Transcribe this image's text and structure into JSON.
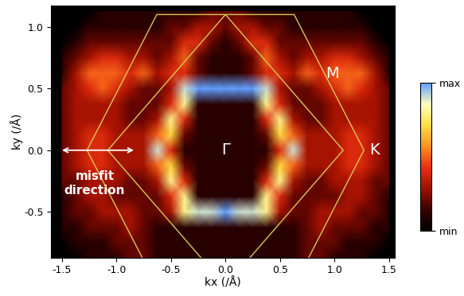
{
  "chart_data": {
    "type": "heatmap",
    "x_label": "kx (/Å)",
    "y_label": "ky (/Å)",
    "x": [
      -1.5,
      -1.375,
      -1.25,
      -1.125,
      -1.0,
      -0.875,
      -0.75,
      -0.625,
      -0.5,
      -0.375,
      -0.25,
      -0.125,
      0.0,
      0.125,
      0.25,
      0.375,
      0.5,
      0.625,
      0.75,
      0.875,
      1.0,
      1.125,
      1.25,
      1.375,
      1.5
    ],
    "y": [
      -0.875,
      -0.75,
      -0.625,
      -0.5,
      -0.375,
      -0.25,
      -0.125,
      0.0,
      0.125,
      0.25,
      0.375,
      0.5,
      0.625,
      0.75,
      0.875,
      1.0,
      1.125
    ],
    "cells": [
      [
        0,
        0,
        1,
        1,
        1,
        2,
        2,
        1,
        1,
        1,
        1,
        1,
        1,
        1,
        1,
        1,
        1,
        1,
        2,
        2,
        1,
        1,
        1,
        0,
        0
      ],
      [
        0,
        1,
        1,
        1,
        2,
        2,
        2,
        1,
        1,
        1,
        1,
        1,
        1,
        1,
        1,
        1,
        1,
        1,
        2,
        2,
        2,
        1,
        1,
        1,
        0
      ],
      [
        1,
        1,
        2,
        2,
        2,
        3,
        2,
        1,
        1,
        1,
        1,
        1,
        1,
        1,
        1,
        1,
        1,
        1,
        2,
        3,
        2,
        2,
        2,
        1,
        1
      ],
      [
        1,
        2,
        2,
        3,
        3,
        3,
        2,
        2,
        3,
        8,
        9,
        9,
        10,
        9,
        9,
        8,
        3,
        2,
        2,
        3,
        3,
        3,
        2,
        2,
        1
      ],
      [
        1,
        2,
        3,
        3,
        2,
        2,
        2,
        2,
        4,
        8,
        1,
        1,
        1,
        1,
        1,
        8,
        4,
        2,
        2,
        2,
        2,
        3,
        3,
        2,
        1
      ],
      [
        2,
        2,
        3,
        3,
        3,
        2,
        2,
        3,
        8,
        4,
        1,
        1,
        1,
        1,
        1,
        4,
        8,
        3,
        2,
        2,
        3,
        3,
        3,
        2,
        2
      ],
      [
        2,
        3,
        4,
        4,
        3,
        3,
        3,
        5,
        7,
        2,
        1,
        1,
        1,
        1,
        1,
        2,
        7,
        5,
        3,
        3,
        3,
        4,
        4,
        3,
        2
      ],
      [
        2,
        3,
        4,
        4,
        3,
        3,
        3,
        9,
        4,
        1,
        1,
        1,
        1,
        1,
        1,
        1,
        4,
        9,
        3,
        3,
        3,
        4,
        4,
        3,
        2
      ],
      [
        2,
        3,
        4,
        4,
        3,
        3,
        3,
        5,
        7,
        2,
        1,
        1,
        1,
        1,
        1,
        2,
        7,
        5,
        3,
        3,
        3,
        4,
        4,
        3,
        2
      ],
      [
        2,
        3,
        3,
        3,
        3,
        2,
        2,
        3,
        8,
        4,
        1,
        1,
        1,
        1,
        1,
        4,
        8,
        3,
        2,
        2,
        3,
        3,
        3,
        3,
        2
      ],
      [
        2,
        3,
        3,
        3,
        3,
        2,
        2,
        2,
        4,
        8,
        1,
        1,
        1,
        1,
        1,
        8,
        4,
        2,
        2,
        2,
        3,
        3,
        3,
        3,
        2
      ],
      [
        2,
        3,
        4,
        5,
        4,
        3,
        2,
        2,
        3,
        9,
        10,
        10,
        10,
        10,
        10,
        9,
        3,
        2,
        2,
        3,
        4,
        5,
        4,
        3,
        2
      ],
      [
        1,
        3,
        5,
        5,
        5,
        4,
        5,
        3,
        4,
        4,
        2,
        1,
        1,
        1,
        2,
        4,
        4,
        3,
        5,
        4,
        5,
        5,
        5,
        3,
        1
      ],
      [
        1,
        2,
        3,
        4,
        4,
        3,
        3,
        2,
        3,
        5,
        2,
        1,
        1,
        1,
        2,
        5,
        3,
        2,
        3,
        3,
        4,
        4,
        3,
        2,
        1
      ],
      [
        0,
        1,
        2,
        2,
        2,
        2,
        2,
        2,
        2,
        4,
        4,
        2,
        1,
        2,
        4,
        4,
        2,
        2,
        2,
        2,
        2,
        2,
        2,
        1,
        0
      ],
      [
        0,
        0,
        1,
        1,
        1,
        1,
        1,
        1,
        2,
        2,
        3,
        3,
        2,
        3,
        3,
        2,
        2,
        1,
        1,
        1,
        1,
        1,
        1,
        0,
        0
      ],
      [
        0,
        0,
        0,
        1,
        1,
        1,
        1,
        1,
        1,
        1,
        1,
        2,
        2,
        2,
        1,
        1,
        1,
        1,
        1,
        1,
        1,
        1,
        0,
        0,
        0
      ]
    ],
    "colorbar": {
      "range": [
        0,
        10
      ],
      "ticks": [
        {
          "value": 0,
          "label": "min"
        },
        {
          "value": 10,
          "label": "max"
        }
      ]
    },
    "xlim": [
      -1.6,
      1.55
    ],
    "ylim": [
      -0.87,
      1.17
    ],
    "xticks": [
      -1.5,
      -1.0,
      -0.5,
      0.0,
      0.5,
      1.0,
      1.5
    ],
    "yticks": [
      -0.5,
      0.0,
      0.5,
      1.0
    ],
    "overlays": [
      {
        "vertices": [
          [
            1.27,
            0.0
          ],
          [
            0.63,
            1.1
          ],
          [
            -0.63,
            1.1
          ],
          [
            -1.27,
            0.0
          ],
          [
            -0.63,
            -1.1
          ],
          [
            0.63,
            -1.1
          ]
        ],
        "color": "#d8c850"
      },
      {
        "vertices": [
          [
            0.0,
            1.1
          ],
          [
            1.08,
            0.0
          ],
          [
            0.0,
            -1.1
          ],
          [
            -1.08,
            0.0
          ]
        ],
        "color": "#d8c850"
      }
    ],
    "annotations": [
      {
        "text": "Γ",
        "x": 0.0,
        "y": 0.0,
        "color": "#ffffff"
      },
      {
        "text": "M",
        "x": 0.98,
        "y": 0.62,
        "color": "#ffffff"
      },
      {
        "text": "K",
        "x": 1.37,
        "y": 0.0,
        "color": "#ffffff"
      },
      {
        "text": "misfit\ndirection",
        "x": -1.2,
        "y": -0.27,
        "color": "#ffffff",
        "arrow": [
          [
            -1.52,
            0.0
          ],
          [
            -0.82,
            0.0
          ]
        ]
      }
    ]
  }
}
